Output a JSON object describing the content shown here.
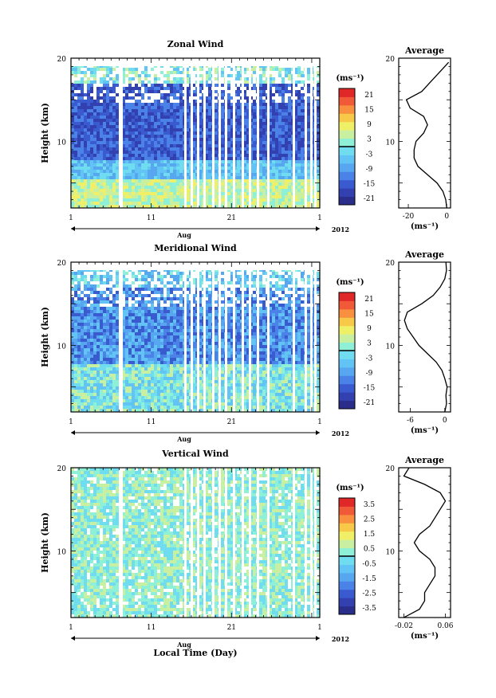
{
  "figure": {
    "xlabel": "Local Time (Day)",
    "month_label": "Aug",
    "year_label": "2012",
    "average_title": "Average",
    "unit_label": "(ms⁻¹)",
    "ylabel": "Height (km)"
  },
  "chart_data": [
    {
      "type": "heatmap",
      "title": "Zonal Wind",
      "ylabel": "Height (km)",
      "xlabel": "Aug",
      "x_ticks": [
        "1",
        "11",
        "21",
        "1"
      ],
      "y_ticks": [
        "20",
        "10"
      ],
      "ylim": [
        2,
        20
      ],
      "xlim": [
        1,
        32
      ],
      "colorbar_label": "(ms⁻¹)",
      "colorbar_ticks": [
        "21",
        "15",
        "9",
        "3",
        "-3",
        "-9",
        "-15",
        "-21"
      ],
      "colorbar_range": [
        -24,
        24
      ],
      "colors": [
        "#2a2e8a",
        "#3340b0",
        "#3a5ad0",
        "#4a82e8",
        "#57a6f0",
        "#62c4f5",
        "#70dcf0",
        "#8ef0d6",
        "#c8f0a0",
        "#f0f068",
        "#f8c848",
        "#f89040",
        "#f05a38",
        "#e02828"
      ],
      "average": {
        "title": "Average",
        "xlabel": "(ms⁻¹)",
        "x_ticks": [
          "-20",
          "0"
        ],
        "xlim": [
          -25,
          2
        ],
        "height": [
          2,
          3,
          4,
          5,
          6,
          7,
          8,
          9,
          10,
          11,
          12,
          13,
          14,
          15,
          16,
          17,
          18,
          19,
          19.5
        ],
        "value": [
          0,
          -0.5,
          -2,
          -5,
          -10,
          -15,
          -17,
          -17,
          -16,
          -12,
          -10,
          -12,
          -19,
          -21,
          -13,
          -9,
          -5,
          -1,
          1
        ]
      }
    },
    {
      "type": "heatmap",
      "title": "Meridional Wind",
      "ylabel": "Height (km)",
      "xlabel": "Aug",
      "x_ticks": [
        "1",
        "11",
        "21",
        "1"
      ],
      "y_ticks": [
        "20",
        "10"
      ],
      "ylim": [
        2,
        20
      ],
      "xlim": [
        1,
        32
      ],
      "colorbar_label": "(ms⁻¹)",
      "colorbar_ticks": [
        "21",
        "15",
        "9",
        "3",
        "-3",
        "-9",
        "-15",
        "-21"
      ],
      "colorbar_range": [
        -24,
        24
      ],
      "colors": [
        "#2a2e8a",
        "#3340b0",
        "#3a5ad0",
        "#4a82e8",
        "#57a6f0",
        "#62c4f5",
        "#70dcf0",
        "#8ef0d6",
        "#c8f0a0",
        "#f0f068",
        "#f8c848",
        "#f89040",
        "#f05a38",
        "#e02828"
      ],
      "average": {
        "title": "Average",
        "xlabel": "(ms⁻¹)",
        "x_ticks": [
          "-6",
          "0"
        ],
        "xlim": [
          -8,
          1
        ],
        "height": [
          2,
          3,
          4,
          5,
          6,
          7,
          8,
          9,
          10,
          11,
          12,
          13,
          14,
          15,
          16,
          17,
          18,
          19,
          20
        ],
        "value": [
          0,
          0.3,
          0.2,
          0.4,
          0,
          -0.5,
          -1.5,
          -3,
          -4.5,
          -5.5,
          -6.5,
          -7,
          -6.5,
          -4,
          -2,
          -0.8,
          0,
          0.3,
          0.2
        ]
      }
    },
    {
      "type": "heatmap",
      "title": "Vertical Wind",
      "ylabel": "Height (km)",
      "xlabel": "Aug",
      "x_ticks": [
        "1",
        "11",
        "21",
        "1"
      ],
      "y_ticks": [
        "20",
        "10"
      ],
      "ylim": [
        2,
        20
      ],
      "xlim": [
        1,
        32
      ],
      "colorbar_label": "(ms⁻¹)",
      "colorbar_ticks": [
        "3.5",
        "2.5",
        "1.5",
        "0.5",
        "-0.5",
        "-1.5",
        "-2.5",
        "-3.5"
      ],
      "colorbar_range": [
        -4,
        4
      ],
      "colors": [
        "#2a2e8a",
        "#3340b0",
        "#3a5ad0",
        "#4a82e8",
        "#57a6f0",
        "#62c4f5",
        "#70dcf0",
        "#8ef0d6",
        "#c8f0a0",
        "#f0f068",
        "#f8c848",
        "#f89040",
        "#f05a38",
        "#e02828"
      ],
      "average": {
        "title": "Average",
        "xlabel": "(ms⁻¹)",
        "x_ticks": [
          "-0.02",
          "0.06"
        ],
        "xlim": [
          -0.03,
          0.07
        ],
        "height": [
          2,
          3,
          4,
          5,
          6,
          7,
          8,
          9,
          10,
          11,
          12,
          13,
          14,
          15,
          16,
          17,
          18,
          19,
          20
        ],
        "value": [
          -0.02,
          0.01,
          0.02,
          0.02,
          0.03,
          0.04,
          0.04,
          0.03,
          0.01,
          0.0,
          0.01,
          0.03,
          0.04,
          0.05,
          0.06,
          0.05,
          0.02,
          -0.02,
          -0.01
        ]
      }
    }
  ]
}
